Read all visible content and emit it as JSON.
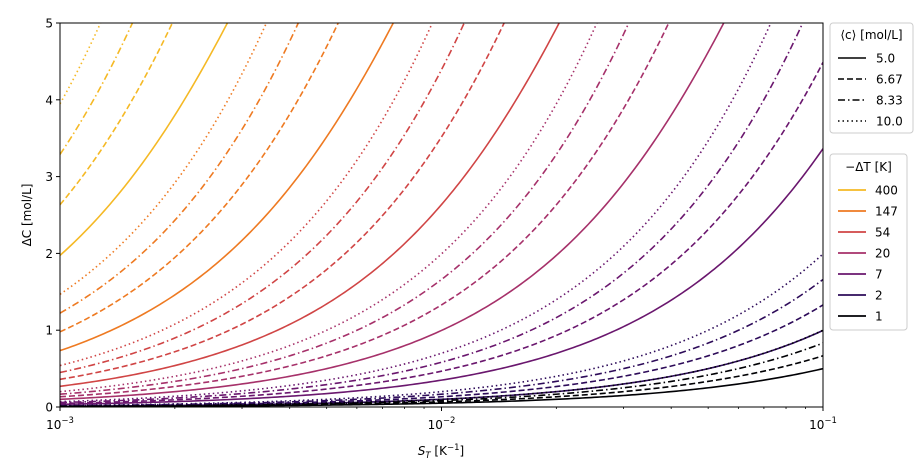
{
  "chart_data": {
    "type": "line",
    "xlabel": "S_T [K⁻¹]",
    "xlabel_main": "S",
    "xlabel_sub": "T",
    "xlabel_unit": " [K",
    "xlabel_exp": "−1",
    "xlabel_close": "]",
    "ylabel": "ΔC [mol/L]",
    "x_scale": "log",
    "xlim": [
      0.001,
      0.1
    ],
    "ylim": [
      0,
      5
    ],
    "x_ticks": [
      {
        "value": 0.001,
        "base": "10",
        "exp": "−3"
      },
      {
        "value": 0.01,
        "base": "10",
        "exp": "−2"
      },
      {
        "value": 0.1,
        "base": "10",
        "exp": "−1"
      }
    ],
    "y_ticks": [
      0,
      1,
      2,
      3,
      4,
      5
    ],
    "grid": false,
    "model": "ΔC = 2·⟨c⟩·tanh(S_T·|ΔT|/2)",
    "concentration_legend": {
      "title": "⟨c⟩ [mol/L]",
      "placement": "upper right, outside axes",
      "entries": [
        {
          "label": "5.0",
          "value": 5.0,
          "style": "solid"
        },
        {
          "label": "6.67",
          "value": 6.67,
          "style": "dashed"
        },
        {
          "label": "8.33",
          "value": 8.33,
          "style": "dashdot"
        },
        {
          "label": "10.0",
          "value": 10.0,
          "style": "dotted"
        }
      ]
    },
    "temperature_legend": {
      "title": "−ΔT [K]",
      "placement": "right, outside axes",
      "entries": [
        {
          "label": "400",
          "value": 400,
          "color": "#f5b925"
        },
        {
          "label": "147",
          "value": 147,
          "color": "#ee7a22"
        },
        {
          "label": "54",
          "value": 54,
          "color": "#d04545"
        },
        {
          "label": "20",
          "value": 20,
          "color": "#a6316a"
        },
        {
          "label": "7",
          "value": 7,
          "color": "#6a176e"
        },
        {
          "label": "2",
          "value": 2,
          "color": "#2d0b59"
        },
        {
          "label": "1",
          "value": 1,
          "color": "#000004"
        }
      ]
    }
  }
}
